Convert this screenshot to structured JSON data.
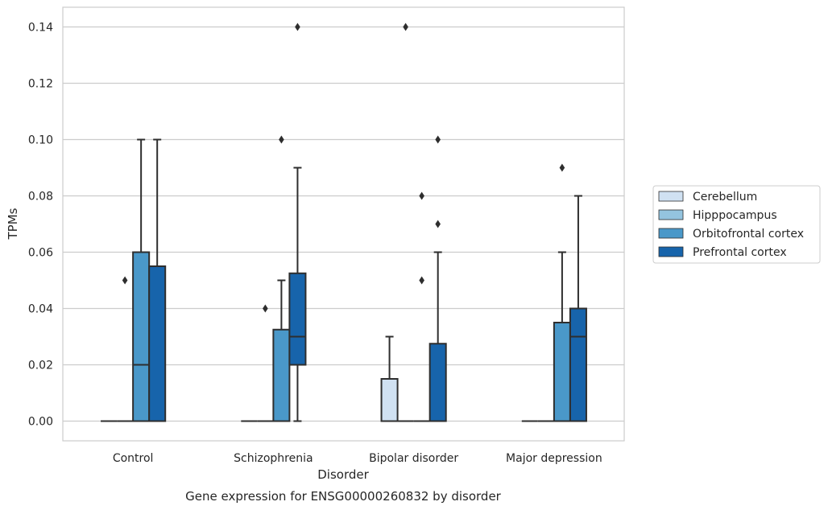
{
  "chart_data": {
    "type": "box",
    "caption": "Gene expression for ENSG00000260832 by disorder",
    "xlabel": "Disorder",
    "ylabel": "TPMs",
    "ylim": [
      -0.007,
      0.147
    ],
    "yticks": [
      0.0,
      0.02,
      0.04,
      0.06,
      0.08,
      0.1,
      0.12,
      0.14
    ],
    "ytick_labels": [
      "0.00",
      "0.02",
      "0.04",
      "0.06",
      "0.08",
      "0.10",
      "0.12",
      "0.14"
    ],
    "grid": "horizontal",
    "legend_position": "right",
    "categories": [
      "Control",
      "Schizophrenia",
      "Bipolar disorder",
      "Major depression"
    ],
    "series": [
      {
        "name": "Cerebellum",
        "color": "#d0e1f2",
        "boxes": [
          {
            "q1": 0.0,
            "median": 0.0,
            "q3": 0.0,
            "whislo": 0.0,
            "whishi": 0.0,
            "fliers": []
          },
          {
            "q1": 0.0,
            "median": 0.0,
            "q3": 0.0,
            "whislo": 0.0,
            "whishi": 0.0,
            "fliers": []
          },
          {
            "q1": 0.0,
            "median": 0.0,
            "q3": 0.015,
            "whislo": 0.0,
            "whishi": 0.03,
            "fliers": []
          },
          {
            "q1": 0.0,
            "median": 0.0,
            "q3": 0.0,
            "whislo": 0.0,
            "whishi": 0.0,
            "fliers": []
          }
        ]
      },
      {
        "name": "Hipppocampus",
        "color": "#94c4df",
        "boxes": [
          {
            "q1": 0.0,
            "median": 0.0,
            "q3": 0.0,
            "whislo": 0.0,
            "whishi": 0.0,
            "fliers": [
              0.05
            ]
          },
          {
            "q1": 0.0,
            "median": 0.0,
            "q3": 0.0,
            "whislo": 0.0,
            "whishi": 0.0,
            "fliers": [
              0.04
            ]
          },
          {
            "q1": 0.0,
            "median": 0.0,
            "q3": 0.0,
            "whislo": 0.0,
            "whishi": 0.0,
            "fliers": [
              0.14
            ]
          },
          {
            "q1": 0.0,
            "median": 0.0,
            "q3": 0.0,
            "whislo": 0.0,
            "whishi": 0.0,
            "fliers": []
          }
        ]
      },
      {
        "name": "Orbitofrontal cortex",
        "color": "#4a98c9",
        "boxes": [
          {
            "q1": 0.0,
            "median": 0.02,
            "q3": 0.06,
            "whislo": 0.0,
            "whishi": 0.1,
            "fliers": []
          },
          {
            "q1": 0.0,
            "median": 0.0,
            "q3": 0.0325,
            "whislo": 0.0,
            "whishi": 0.05,
            "fliers": [
              0.1
            ]
          },
          {
            "q1": 0.0,
            "median": 0.0,
            "q3": 0.0,
            "whislo": 0.0,
            "whishi": 0.0,
            "fliers": [
              0.05,
              0.08
            ]
          },
          {
            "q1": 0.0,
            "median": 0.0,
            "q3": 0.035,
            "whislo": 0.0,
            "whishi": 0.06,
            "fliers": [
              0.09
            ]
          }
        ]
      },
      {
        "name": "Prefrontal cortex",
        "color": "#1764ab",
        "boxes": [
          {
            "q1": 0.0,
            "median": 0.0,
            "q3": 0.055,
            "whislo": 0.0,
            "whishi": 0.1,
            "fliers": []
          },
          {
            "q1": 0.02,
            "median": 0.03,
            "q3": 0.0525,
            "whislo": 0.0,
            "whishi": 0.09,
            "fliers": [
              0.14
            ]
          },
          {
            "q1": 0.0,
            "median": 0.0,
            "q3": 0.0275,
            "whislo": 0.0,
            "whishi": 0.06,
            "fliers": [
              0.07,
              0.1
            ]
          },
          {
            "q1": 0.0,
            "median": 0.03,
            "q3": 0.04,
            "whislo": 0.0,
            "whishi": 0.08,
            "fliers": []
          }
        ]
      }
    ]
  }
}
